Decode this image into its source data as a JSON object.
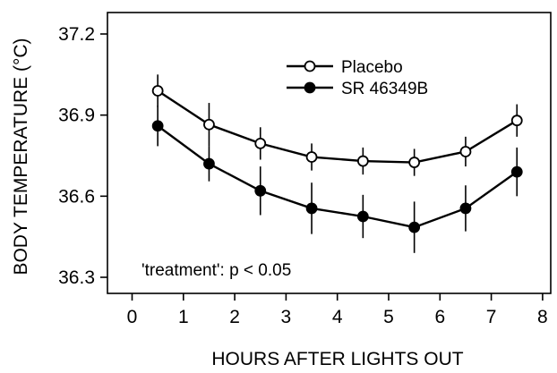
{
  "chart_data": {
    "type": "line",
    "xlabel": "HOURS AFTER LIGHTS OUT",
    "ylabel": "BODY TEMPERATURE (°C)",
    "xlim": [
      0,
      8
    ],
    "ylim": [
      36.25,
      37.25
    ],
    "xticks": [
      0,
      1,
      2,
      3,
      4,
      5,
      6,
      7,
      8
    ],
    "yticks": [
      36.3,
      36.6,
      36.9,
      37.2
    ],
    "ytick_labels": [
      "36.3",
      "36.6",
      "36.9",
      "37.2"
    ],
    "grid": false,
    "legend_position": "top-center",
    "annotation": "'treatment': p < 0.05",
    "x": [
      0.5,
      1.5,
      2.5,
      3.5,
      4.5,
      5.5,
      6.5,
      7.5
    ],
    "series": [
      {
        "name": "Placebo",
        "marker": "open-circle",
        "values": [
          36.99,
          36.865,
          36.795,
          36.745,
          36.73,
          36.725,
          36.765,
          36.88
        ],
        "errors": [
          0.06,
          0.08,
          0.06,
          0.05,
          0.05,
          0.05,
          0.055,
          0.06
        ]
      },
      {
        "name": "SR 46349B",
        "marker": "filled-circle",
        "values": [
          36.86,
          36.72,
          36.62,
          36.555,
          36.525,
          36.485,
          36.555,
          36.69
        ],
        "errors": [
          0.075,
          0.065,
          0.09,
          0.095,
          0.08,
          0.095,
          0.085,
          0.09
        ]
      }
    ]
  }
}
